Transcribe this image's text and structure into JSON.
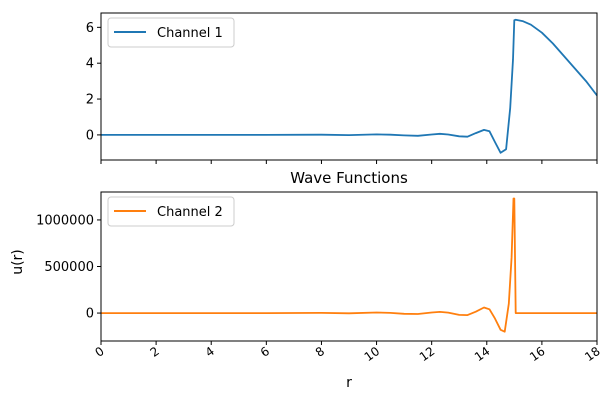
{
  "figure": {
    "background": "#ffffff",
    "axis_color": "#000000"
  },
  "chart_data": [
    {
      "type": "line",
      "title": "",
      "xlabel": "",
      "ylabel": "",
      "xlim": [
        0,
        18
      ],
      "ylim": [
        -1.4,
        6.8
      ],
      "xticks": [
        0,
        2,
        4,
        6,
        8,
        10,
        12,
        14,
        16,
        18
      ],
      "show_xtick_labels": false,
      "yticks": [
        0,
        2,
        4,
        6
      ],
      "ytick_labels": [
        "0",
        "2",
        "4",
        "6"
      ],
      "grid": false,
      "legend_position": "top-left",
      "series": [
        {
          "name": "Channel 1",
          "color": "#1f77b4",
          "x": [
            0,
            2,
            4,
            6,
            8,
            9,
            10,
            10.5,
            11,
            11.5,
            12,
            12.3,
            12.6,
            13,
            13.3,
            13.6,
            13.9,
            14.1,
            14.3,
            14.5,
            14.7,
            14.85,
            14.95,
            15.0,
            15.05,
            15.3,
            15.6,
            16,
            16.4,
            16.8,
            17.2,
            17.6,
            18
          ],
          "values": [
            0,
            0,
            0,
            0,
            0.01,
            -0.01,
            0.03,
            0.01,
            -0.03,
            -0.05,
            0.02,
            0.06,
            0.02,
            -0.08,
            -0.1,
            0.1,
            0.28,
            0.2,
            -0.4,
            -1.0,
            -0.8,
            1.5,
            4.2,
            6.4,
            6.42,
            6.35,
            6.15,
            5.7,
            5.1,
            4.4,
            3.7,
            3.0,
            2.2
          ]
        }
      ]
    },
    {
      "type": "line",
      "title": "Wave Functions",
      "xlabel": "r",
      "ylabel": "u(r)",
      "xlim": [
        0,
        18
      ],
      "ylim": [
        -300000,
        1300000
      ],
      "xticks": [
        0,
        2,
        4,
        6,
        8,
        10,
        12,
        14,
        16,
        18
      ],
      "xtick_labels": [
        "0",
        "2",
        "4",
        "6",
        "8",
        "10",
        "12",
        "14",
        "16",
        "18"
      ],
      "yticks": [
        0,
        500000,
        1000000
      ],
      "ytick_labels": [
        "0",
        "500000",
        "1000000"
      ],
      "grid": false,
      "legend_position": "top-left",
      "series": [
        {
          "name": "Channel 2",
          "color": "#ff7f0e",
          "x": [
            0,
            2,
            4,
            6,
            8,
            9,
            10,
            10.5,
            11,
            11.5,
            12,
            12.3,
            12.6,
            13,
            13.3,
            13.6,
            13.9,
            14.1,
            14.3,
            14.5,
            14.65,
            14.8,
            14.9,
            14.97,
            15.0,
            15.05,
            15.1,
            16,
            17,
            18
          ],
          "values": [
            0,
            0,
            0,
            0,
            2000,
            -3000,
            6000,
            2000,
            -8000,
            -10000,
            6000,
            12000,
            5000,
            -20000,
            -22000,
            15000,
            60000,
            40000,
            -60000,
            -180000,
            -200000,
            100000,
            600000,
            1230000,
            1230000,
            0,
            0,
            0,
            0,
            0
          ]
        }
      ]
    }
  ]
}
